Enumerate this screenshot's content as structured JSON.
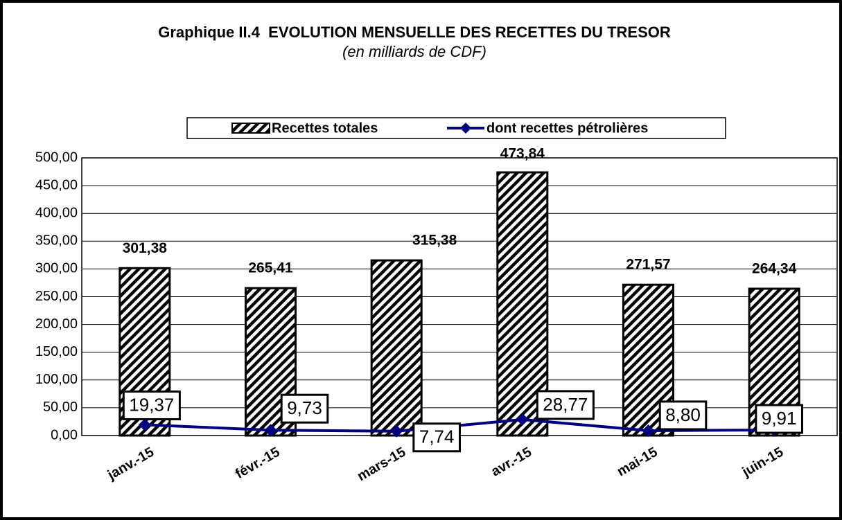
{
  "chart_data": {
    "type": "bar",
    "title": "Graphique II.4  EVOLUTION MENSUELLE DES RECETTES DU TRESOR",
    "subtitle": "(en milliards de CDF)",
    "categories": [
      "janv.-15",
      "févr.-15",
      "mars-15",
      "avr.-15",
      "mai-15",
      "juin-15"
    ],
    "series": [
      {
        "name": "Recettes totales",
        "type": "bar",
        "color": "#000000",
        "values": [
          301.38,
          265.41,
          315.38,
          473.84,
          271.57,
          264.34
        ],
        "value_labels": [
          "301,38",
          "265,41",
          "315,38",
          "473,84",
          "271,57",
          "264,34"
        ]
      },
      {
        "name": "dont recettes pétrolières",
        "type": "line",
        "color": "#000080",
        "values": [
          19.37,
          9.73,
          7.74,
          28.77,
          8.8,
          9.91
        ],
        "value_labels": [
          "19,37",
          "9,73",
          "7,74",
          "28,77",
          "8,80",
          "9,91"
        ]
      }
    ],
    "ylim": [
      0,
      500
    ],
    "yticks": [
      {
        "value": 0,
        "label": "0,00"
      },
      {
        "value": 50,
        "label": "50,00"
      },
      {
        "value": 100,
        "label": "100,00"
      },
      {
        "value": 150,
        "label": "150,00"
      },
      {
        "value": 200,
        "label": "200,00"
      },
      {
        "value": 250,
        "label": "250,00"
      },
      {
        "value": 300,
        "label": "300,00"
      },
      {
        "value": 350,
        "label": "350,00"
      },
      {
        "value": 400,
        "label": "400,00"
      },
      {
        "value": 450,
        "label": "450,00"
      },
      {
        "value": 500,
        "label": "500,00"
      }
    ],
    "grid": true,
    "legend": "top"
  }
}
